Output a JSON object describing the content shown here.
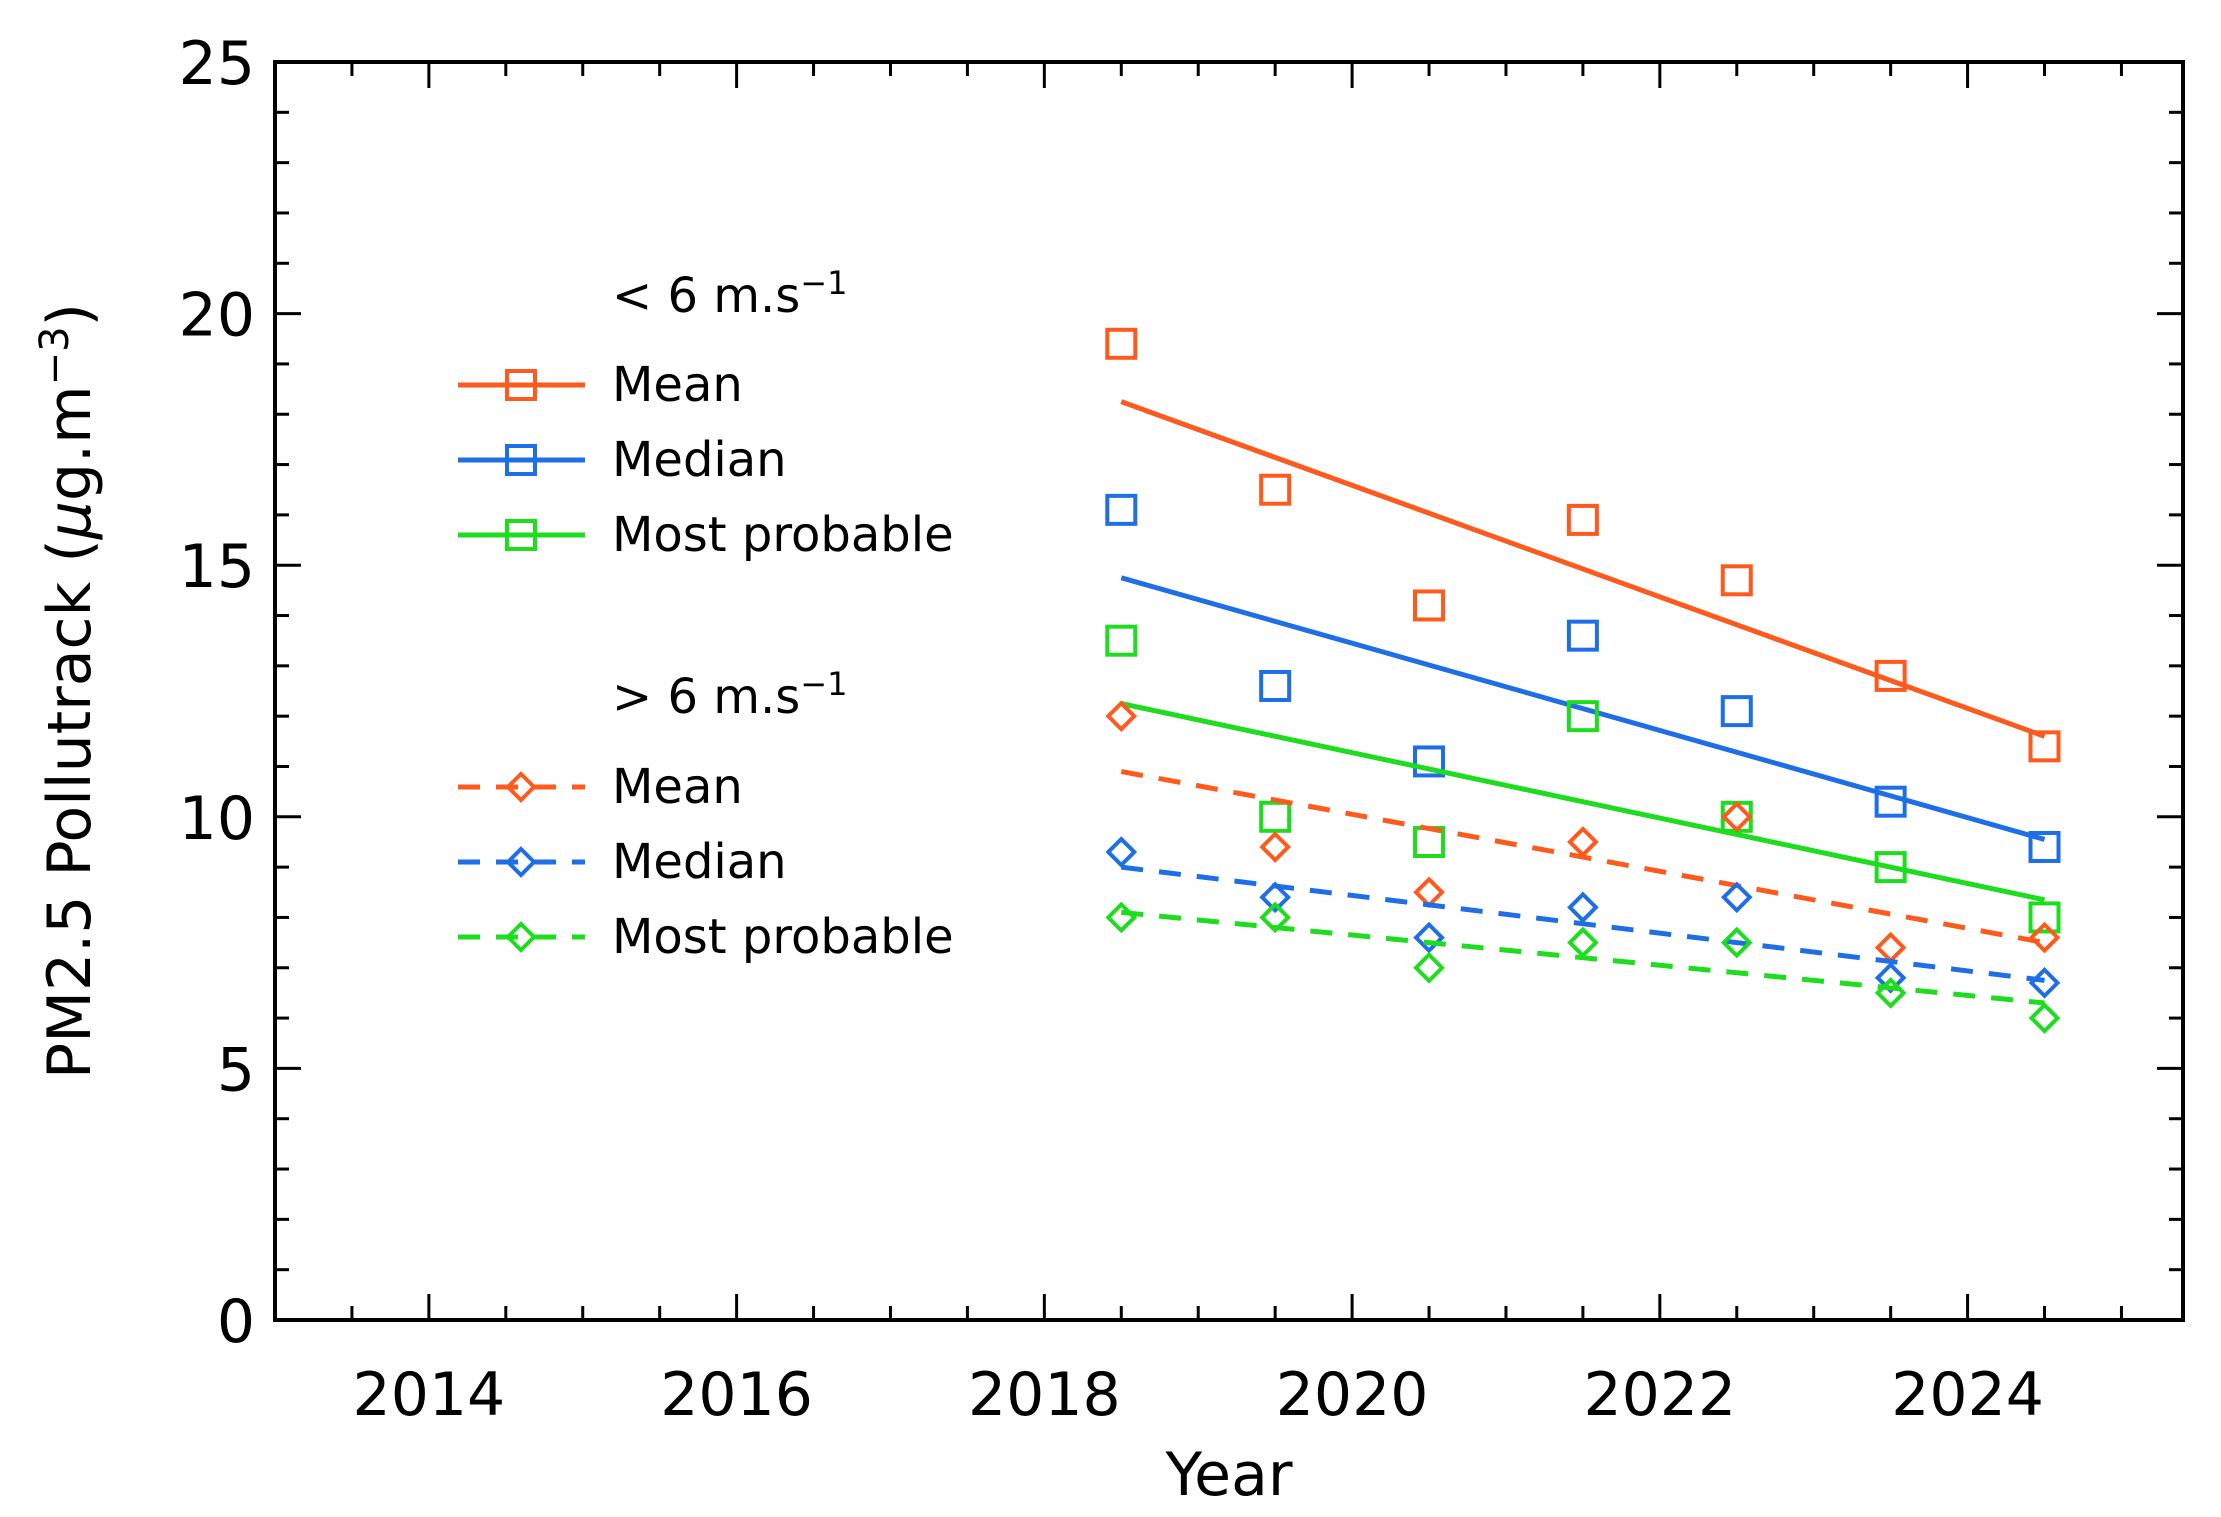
{
  "chart_data": {
    "type": "scatter",
    "title": "",
    "xlabel": "Year",
    "ylabel_main": "PM2.5 Pollutrack (",
    "ylabel_mu": "μ",
    "ylabel_unit": "g.m",
    "ylabel_exp": "−3",
    "ylabel_close": ")",
    "xlim": [
      2013,
      2025.4
    ],
    "ylim": [
      0,
      25
    ],
    "x_ticks": [
      2014,
      2016,
      2018,
      2020,
      2022,
      2024
    ],
    "x_tick_labels": [
      "2014",
      "2016",
      "2018",
      "2020",
      "2022",
      "2024"
    ],
    "y_ticks": [
      0,
      5,
      10,
      15,
      20,
      25
    ],
    "y_tick_labels": [
      "0",
      "5",
      "10",
      "15",
      "20",
      "25"
    ],
    "x": [
      2018.5,
      2019.5,
      2020.5,
      2021.5,
      2022.5,
      2023.5,
      2024.5
    ],
    "legend_groups": [
      {
        "prefix": "< 6 m.s",
        "exp": "−1"
      },
      {
        "prefix": "> 6 m.s",
        "exp": "−1"
      }
    ],
    "legend_position": "upper-left",
    "series": [
      {
        "name": "Mean",
        "group": 0,
        "marker": "square",
        "line": "solid",
        "color": "#ff5a1e",
        "values": [
          19.4,
          16.5,
          14.2,
          15.9,
          14.7,
          12.8,
          11.4
        ],
        "fit": [
          18.25,
          11.6
        ]
      },
      {
        "name": "Median",
        "group": 0,
        "marker": "square",
        "line": "solid",
        "color": "#1e6ee6",
        "values": [
          16.1,
          12.6,
          11.1,
          13.6,
          12.1,
          10.3,
          9.4
        ],
        "fit": [
          14.75,
          9.55
        ]
      },
      {
        "name": "Most probable",
        "group": 0,
        "marker": "square",
        "line": "solid",
        "color": "#1edc1e",
        "values": [
          13.5,
          10.0,
          9.5,
          12.0,
          10.0,
          9.0,
          8.0
        ],
        "fit": [
          12.25,
          8.35
        ]
      },
      {
        "name": "Mean",
        "group": 1,
        "marker": "diamond",
        "line": "dashed",
        "color": "#ff5a1e",
        "values": [
          12.0,
          9.4,
          8.5,
          9.5,
          10.0,
          7.4,
          7.6
        ],
        "fit": [
          10.9,
          7.5
        ]
      },
      {
        "name": "Median",
        "group": 1,
        "marker": "diamond",
        "line": "dashed",
        "color": "#1e6ee6",
        "values": [
          9.3,
          8.4,
          7.6,
          8.2,
          8.4,
          6.8,
          6.7
        ],
        "fit": [
          9.0,
          6.75
        ]
      },
      {
        "name": "Most probable",
        "group": 1,
        "marker": "diamond",
        "line": "dashed",
        "color": "#1edc1e",
        "values": [
          8.0,
          8.0,
          7.0,
          7.5,
          7.5,
          6.5,
          6.0
        ],
        "fit": [
          8.1,
          6.3
        ]
      }
    ]
  }
}
